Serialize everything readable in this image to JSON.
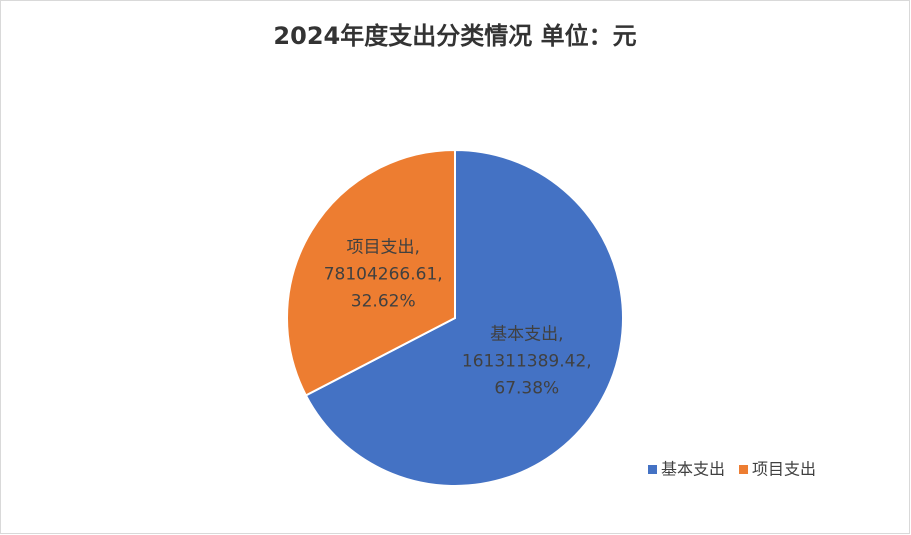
{
  "chart_data": {
    "type": "pie",
    "title": "2024年度支出分类情况  单位：元",
    "categories": [
      "基本支出",
      "项目支出"
    ],
    "values": [
      161311389.42,
      78104266.61
    ],
    "percent_labels": [
      "67.38%",
      "32.62%"
    ],
    "label_separator": ",",
    "colors": [
      "#4472c4",
      "#ed7d31"
    ],
    "legend": "bottom-right"
  }
}
